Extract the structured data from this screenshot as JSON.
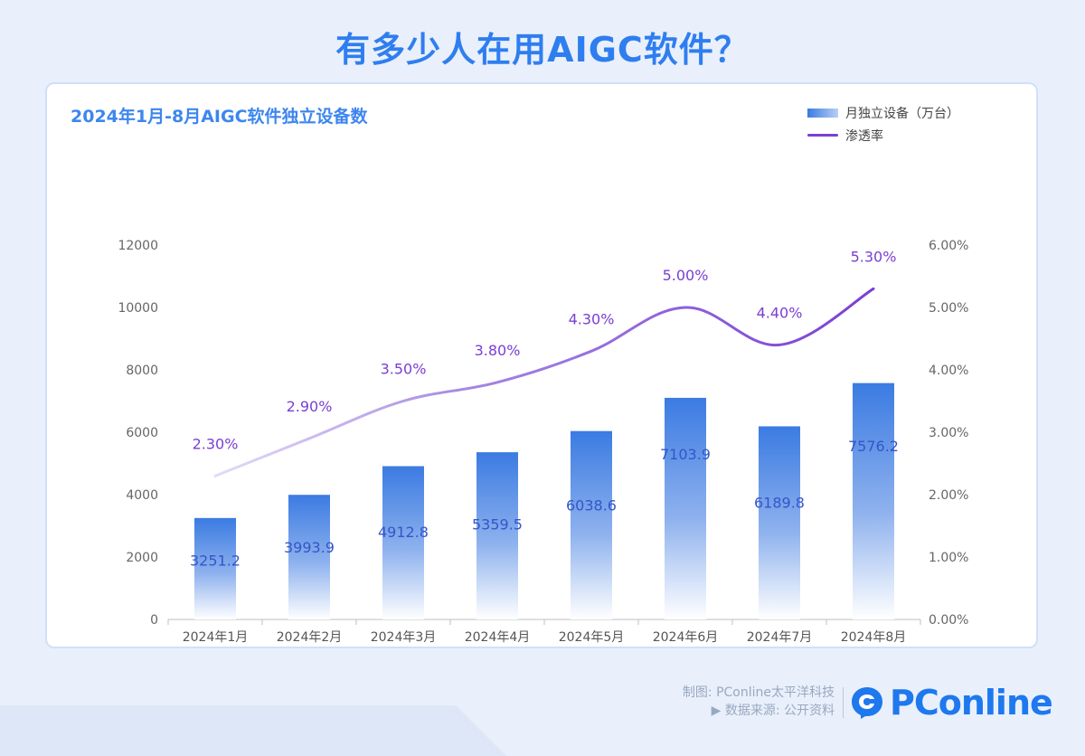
{
  "headline": "有多少人在用AIGC软件？",
  "colors": {
    "headline": "#2f7ef0",
    "bar_top": "#3b7be2",
    "bar_bottom": "#ffffff",
    "line": "#7a3fd3",
    "bar_label": "#3456c9",
    "line_label": "#7a3fd3"
  },
  "legend": {
    "bar_label": "月独立设备（万台）",
    "line_label": "渗透率"
  },
  "footer": {
    "credit_line1": "制图: PConline太平洋科技",
    "credit_line2": "▶ 数据来源: 公开资料",
    "logo_text": "PConline",
    "logo_icon": "pconline-logo-icon"
  },
  "chart_data": {
    "type": "bar+line",
    "title": "2024年1月-8月AIGC软件独立设备数",
    "categories": [
      "2024年1月",
      "2024年2月",
      "2024年3月",
      "2024年4月",
      "2024年5月",
      "2024年6月",
      "2024年7月",
      "2024年8月"
    ],
    "series": [
      {
        "name": "月独立设备（万台）",
        "type": "bar",
        "axis": "left",
        "values": [
          3251.2,
          3993.9,
          4912.8,
          5359.5,
          6038.6,
          7103.9,
          6189.8,
          7576.2
        ],
        "labels": [
          "3251.2",
          "3993.9",
          "4912.8",
          "5359.5",
          "6038.6",
          "7103.9",
          "6189.8",
          "7576.2"
        ]
      },
      {
        "name": "渗透率",
        "type": "line",
        "axis": "right",
        "values": [
          2.3,
          2.9,
          3.5,
          3.8,
          4.3,
          5.0,
          4.4,
          5.3
        ],
        "labels": [
          "2.30%",
          "2.90%",
          "3.50%",
          "3.80%",
          "4.30%",
          "5.00%",
          "4.40%",
          "5.30%"
        ]
      }
    ],
    "y_left": {
      "min": 0,
      "max": 12000,
      "ticks": [
        "0",
        "2000",
        "4000",
        "6000",
        "8000",
        "10000",
        "12000"
      ]
    },
    "y_right": {
      "min": 0,
      "max": 6,
      "ticks": [
        "0.00%",
        "1.00%",
        "2.00%",
        "3.00%",
        "4.00%",
        "5.00%",
        "6.00%"
      ]
    },
    "legend_position": "top-right",
    "grid": false
  }
}
